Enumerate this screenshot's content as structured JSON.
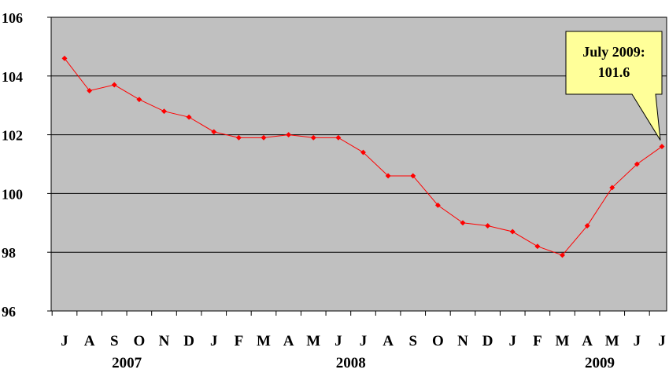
{
  "chart_data": {
    "type": "line",
    "title": "",
    "xlabel": "",
    "ylabel": "",
    "ylim": [
      96,
      106
    ],
    "yticks": [
      "96",
      "98",
      "100",
      "102",
      "104",
      "106"
    ],
    "grid": true,
    "categories": [
      "J",
      "A",
      "S",
      "O",
      "N",
      "D",
      "J",
      "F",
      "M",
      "A",
      "M",
      "J",
      "J",
      "A",
      "S",
      "O",
      "N",
      "D",
      "J",
      "F",
      "M",
      "A",
      "M",
      "J",
      "J"
    ],
    "years": [
      {
        "label": "2007",
        "center_index": 2.5
      },
      {
        "label": "2008",
        "center_index": 11.5
      },
      {
        "label": "2009",
        "center_index": 21.5
      }
    ],
    "series": [
      {
        "values": [
          104.6,
          103.5,
          103.7,
          103.2,
          102.8,
          102.6,
          102.1,
          101.9,
          101.9,
          102.0,
          101.9,
          101.9,
          101.4,
          100.6,
          100.6,
          99.6,
          99.0,
          98.9,
          98.7,
          98.2,
          97.9,
          98.9,
          100.2,
          101.0,
          101.6
        ],
        "color": "#ff0000"
      }
    ],
    "annotation": {
      "line1": "July 2009:",
      "line2": "101.6",
      "point_index": 24,
      "fill": "#ffff99"
    },
    "colors": {
      "plot_background": "#c0c0c0",
      "gridline": "#000000"
    }
  }
}
